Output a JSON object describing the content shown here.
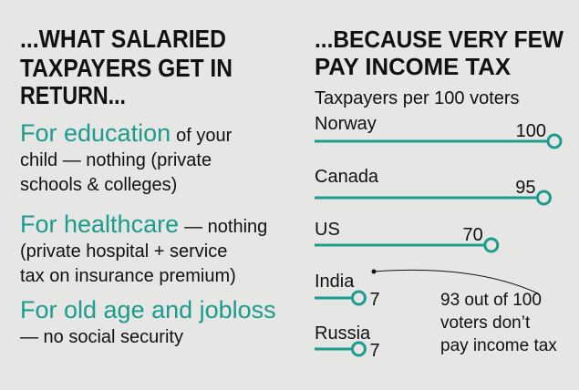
{
  "left": {
    "title_lines": [
      "...WHAT SALARIED",
      "TAXPAYERS GET IN",
      "RETURN..."
    ],
    "items": [
      {
        "heading": "For education",
        "lines": [
          "of your",
          "child — nothing (private",
          "schools & colleges)"
        ]
      },
      {
        "heading": "For healthcare",
        "lines": [
          "— nothing",
          "(private hospital + service",
          "tax on insurance premium)"
        ]
      },
      {
        "heading": "For old age and jobloss",
        "lines": [
          "",
          "— no social security"
        ]
      }
    ]
  },
  "chart_data": {
    "type": "lollipop",
    "title_lines": [
      "...BECAUSE VERY FEW",
      "PAY INCOME TAX"
    ],
    "subtitle": "Taxpayers per 100 voters",
    "categories": [
      "Norway",
      "Canada",
      "US",
      "India",
      "Russia"
    ],
    "values": [
      100,
      95,
      70,
      7,
      7
    ],
    "xlim": [
      -14,
      100
    ],
    "color": "#1b9c8e",
    "annotation_lines": [
      "93 out of 100",
      "voters don’t",
      "pay income tax"
    ]
  }
}
